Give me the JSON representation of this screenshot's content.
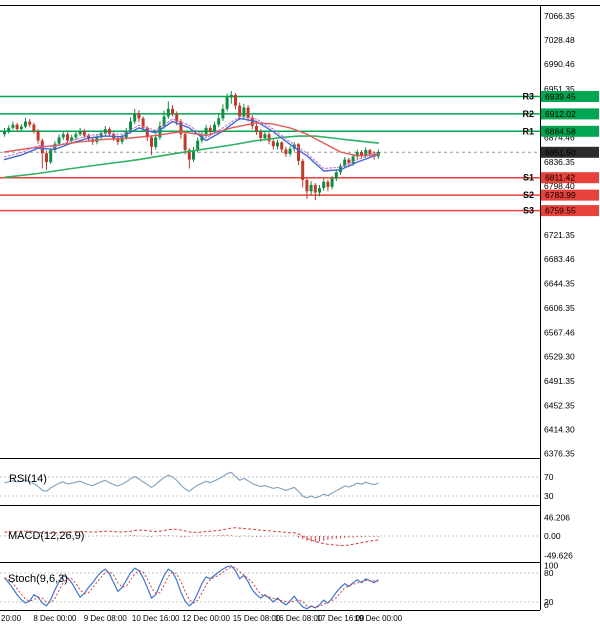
{
  "colors": {
    "resistance": "#00a651",
    "support": "#e8403a",
    "candle_up": "#0f8c44",
    "candle_down": "#c0392b",
    "rsi_line": "#7fa0be",
    "macd_line": "#cf4040",
    "stoch_k": "#3f76cf",
    "stoch_d": "#cf4040",
    "current_badge": "#2b2b2b",
    "current_line": "#999999",
    "frame": "#000000",
    "panel_level_line": "#c9c9c9",
    "axis_text": "#000000"
  },
  "chart_data": {
    "type": "candlestick",
    "ylim": [
      6376.35,
      7066.35
    ],
    "current_price": 6851.5,
    "y_axis_ticks": [
      7066.35,
      7028.48,
      6990.46,
      6951.35,
      6874.46,
      6836.35,
      6798.4,
      6721.35,
      6683.46,
      6644.35,
      6606.35,
      6567.46,
      6529.3,
      6491.35,
      6452.35,
      6414.3,
      6376.35
    ],
    "levels": [
      {
        "name": "R3",
        "value": 6939.45,
        "kind": "resistance"
      },
      {
        "name": "R2",
        "value": 6912.02,
        "kind": "resistance"
      },
      {
        "name": "R1",
        "value": 6884.58,
        "kind": "resistance"
      },
      {
        "name": "S1",
        "value": 6811.42,
        "kind": "support"
      },
      {
        "name": "S2",
        "value": 6783.99,
        "kind": "support"
      },
      {
        "name": "S3",
        "value": 6759.55,
        "kind": "support"
      }
    ],
    "time_ticks": [
      {
        "index": 1,
        "label": "20:00"
      },
      {
        "index": 12,
        "label": "8 Dec 00:00"
      },
      {
        "index": 24,
        "label": "9 Dec 08:00"
      },
      {
        "index": 36,
        "label": "10 Dec 16:00"
      },
      {
        "index": 48,
        "label": "12 Dec 00:00"
      },
      {
        "index": 60,
        "label": "15 Dec 08:00"
      },
      {
        "index": 70,
        "label": "16 Dec 08:00"
      },
      {
        "index": 80,
        "label": "17 Dec 16:00"
      },
      {
        "index": 89,
        "label": "19 Dec 00:00"
      }
    ],
    "candles": [
      [
        6880,
        6890,
        6876,
        6885
      ],
      [
        6885,
        6894,
        6881,
        6890
      ],
      [
        6890,
        6900,
        6887,
        6895
      ],
      [
        6895,
        6898,
        6884,
        6888
      ],
      [
        6888,
        6896,
        6885,
        6892
      ],
      [
        6892,
        6906,
        6889,
        6900
      ],
      [
        6900,
        6904,
        6891,
        6895
      ],
      [
        6895,
        6898,
        6881,
        6885
      ],
      [
        6885,
        6888,
        6865,
        6870
      ],
      [
        6870,
        6873,
        6826,
        6850
      ],
      [
        6850,
        6854,
        6824,
        6836
      ],
      [
        6836,
        6858,
        6833,
        6855
      ],
      [
        6855,
        6869,
        6851,
        6865
      ],
      [
        6865,
        6879,
        6861,
        6875
      ],
      [
        6875,
        6885,
        6871,
        6880
      ],
      [
        6880,
        6883,
        6866,
        6870
      ],
      [
        6870,
        6879,
        6866,
        6875
      ],
      [
        6875,
        6884,
        6871,
        6880
      ],
      [
        6880,
        6890,
        6877,
        6885
      ],
      [
        6885,
        6888,
        6874,
        6878
      ],
      [
        6878,
        6881,
        6868,
        6872
      ],
      [
        6872,
        6875,
        6863,
        6868
      ],
      [
        6868,
        6879,
        6864,
        6875
      ],
      [
        6875,
        6886,
        6871,
        6882
      ],
      [
        6882,
        6893,
        6878,
        6888
      ],
      [
        6888,
        6891,
        6876,
        6880
      ],
      [
        6880,
        6883,
        6869,
        6873
      ],
      [
        6873,
        6876,
        6863,
        6868
      ],
      [
        6868,
        6879,
        6864,
        6875
      ],
      [
        6875,
        6890,
        6871,
        6885
      ],
      [
        6885,
        6907,
        6881,
        6900
      ],
      [
        6900,
        6920,
        6896,
        6913
      ],
      [
        6913,
        6918,
        6899,
        6905
      ],
      [
        6905,
        6908,
        6885,
        6890
      ],
      [
        6890,
        6893,
        6869,
        6875
      ],
      [
        6875,
        6878,
        6847,
        6860
      ],
      [
        6860,
        6880,
        6856,
        6875
      ],
      [
        6875,
        6900,
        6871,
        6893
      ],
      [
        6893,
        6917,
        6889,
        6908
      ],
      [
        6908,
        6932,
        6904,
        6920
      ],
      [
        6920,
        6926,
        6908,
        6912
      ],
      [
        6912,
        6916,
        6894,
        6900
      ],
      [
        6900,
        6904,
        6873,
        6880
      ],
      [
        6880,
        6883,
        6848,
        6855
      ],
      [
        6855,
        6858,
        6826,
        6840
      ],
      [
        6840,
        6860,
        6836,
        6855
      ],
      [
        6855,
        6875,
        6851,
        6870
      ],
      [
        6870,
        6885,
        6866,
        6880
      ],
      [
        6880,
        6895,
        6876,
        6890
      ],
      [
        6890,
        6894,
        6878,
        6885
      ],
      [
        6885,
        6900,
        6881,
        6895
      ],
      [
        6895,
        6911,
        6891,
        6905
      ],
      [
        6905,
        6927,
        6901,
        6920
      ],
      [
        6920,
        6944,
        6916,
        6938
      ],
      [
        6938,
        6948,
        6928,
        6942
      ],
      [
        6942,
        6945,
        6919,
        6925
      ],
      [
        6925,
        6930,
        6902,
        6908
      ],
      [
        6908,
        6928,
        6904,
        6922
      ],
      [
        6922,
        6926,
        6900,
        6906
      ],
      [
        6906,
        6910,
        6888,
        6893
      ],
      [
        6893,
        6897,
        6879,
        6884
      ],
      [
        6884,
        6888,
        6868,
        6874
      ],
      [
        6874,
        6884,
        6870,
        6880
      ],
      [
        6880,
        6883,
        6864,
        6869
      ],
      [
        6869,
        6872,
        6856,
        6861
      ],
      [
        6861,
        6871,
        6856,
        6867
      ],
      [
        6867,
        6869,
        6851,
        6856
      ],
      [
        6856,
        6860,
        6844,
        6849
      ],
      [
        6849,
        6861,
        6845,
        6857
      ],
      [
        6857,
        6868,
        6853,
        6864
      ],
      [
        6864,
        6866,
        6831,
        6838
      ],
      [
        6838,
        6841,
        6796,
        6808
      ],
      [
        6808,
        6811,
        6778,
        6790
      ],
      [
        6790,
        6806,
        6784,
        6800
      ],
      [
        6800,
        6803,
        6776,
        6788
      ],
      [
        6788,
        6800,
        6782,
        6795
      ],
      [
        6795,
        6810,
        6791,
        6805
      ],
      [
        6805,
        6808,
        6790,
        6797
      ],
      [
        6797,
        6814,
        6793,
        6810
      ],
      [
        6810,
        6824,
        6806,
        6820
      ],
      [
        6820,
        6834,
        6816,
        6830
      ],
      [
        6830,
        6844,
        6826,
        6840
      ],
      [
        6840,
        6843,
        6828,
        6834
      ],
      [
        6834,
        6849,
        6830,
        6845
      ],
      [
        6845,
        6856,
        6841,
        6852
      ],
      [
        6852,
        6855,
        6842,
        6847
      ],
      [
        6847,
        6859,
        6843,
        6855
      ],
      [
        6855,
        6857,
        6844,
        6849
      ],
      [
        6849,
        6853,
        6840,
        6845
      ],
      [
        6845,
        6856,
        6841,
        6852
      ]
    ],
    "moving_averages": [
      {
        "name": "ma-green",
        "color": "#2eb263",
        "width": 1.6,
        "points": [
          [
            0,
            6812
          ],
          [
            8,
            6818
          ],
          [
            16,
            6826
          ],
          [
            24,
            6833
          ],
          [
            32,
            6840
          ],
          [
            40,
            6849
          ],
          [
            48,
            6857
          ],
          [
            54,
            6863
          ],
          [
            60,
            6870
          ],
          [
            66,
            6875
          ],
          [
            70,
            6877
          ],
          [
            74,
            6877
          ],
          [
            78,
            6874
          ],
          [
            82,
            6871
          ],
          [
            86,
            6868
          ],
          [
            89,
            6866
          ]
        ]
      },
      {
        "name": "ma-blue",
        "color": "#4169d1",
        "width": 1.4,
        "points": [
          [
            0,
            6840
          ],
          [
            4,
            6847
          ],
          [
            8,
            6858
          ],
          [
            12,
            6856
          ],
          [
            16,
            6866
          ],
          [
            20,
            6874
          ],
          [
            24,
            6877
          ],
          [
            28,
            6876
          ],
          [
            32,
            6890
          ],
          [
            36,
            6882
          ],
          [
            40,
            6900
          ],
          [
            44,
            6890
          ],
          [
            48,
            6870
          ],
          [
            52,
            6885
          ],
          [
            56,
            6905
          ],
          [
            60,
            6900
          ],
          [
            64,
            6884
          ],
          [
            68,
            6864
          ],
          [
            72,
            6846
          ],
          [
            76,
            6822
          ],
          [
            80,
            6824
          ],
          [
            84,
            6836
          ],
          [
            89,
            6848
          ]
        ]
      },
      {
        "name": "ma-red",
        "color": "#e05a5a",
        "width": 1.4,
        "points": [
          [
            0,
            6852
          ],
          [
            6,
            6858
          ],
          [
            12,
            6862
          ],
          [
            18,
            6868
          ],
          [
            24,
            6872
          ],
          [
            30,
            6874
          ],
          [
            36,
            6878
          ],
          [
            42,
            6884
          ],
          [
            48,
            6878
          ],
          [
            54,
            6890
          ],
          [
            60,
            6898
          ],
          [
            64,
            6896
          ],
          [
            68,
            6890
          ],
          [
            72,
            6880
          ],
          [
            76,
            6866
          ],
          [
            80,
            6852
          ],
          [
            84,
            6846
          ],
          [
            89,
            6848
          ]
        ]
      },
      {
        "name": "ma-magenta",
        "color": "#c86ec8",
        "width": 1,
        "dash": "2,2",
        "points": [
          [
            0,
            6844
          ],
          [
            4,
            6851
          ],
          [
            8,
            6862
          ],
          [
            12,
            6860
          ],
          [
            16,
            6870
          ],
          [
            20,
            6878
          ],
          [
            24,
            6881
          ],
          [
            28,
            6880
          ],
          [
            32,
            6894
          ],
          [
            36,
            6886
          ],
          [
            40,
            6904
          ],
          [
            44,
            6894
          ],
          [
            48,
            6874
          ],
          [
            52,
            6890
          ],
          [
            56,
            6908
          ],
          [
            60,
            6904
          ],
          [
            64,
            6888
          ],
          [
            68,
            6868
          ],
          [
            72,
            6850
          ],
          [
            76,
            6826
          ],
          [
            80,
            6828
          ],
          [
            84,
            6840
          ],
          [
            89,
            6852
          ]
        ]
      }
    ],
    "indicators": {
      "rsi": {
        "label": "RSI(14)",
        "levels": [
          70,
          30
        ],
        "axis": [
          {
            "v": 70,
            "label": "70"
          },
          {
            "v": 30,
            "label": "30"
          }
        ],
        "values": [
          58,
          60,
          62,
          60,
          61,
          64,
          61,
          56,
          50,
          42,
          40,
          47,
          52,
          57,
          60,
          55,
          57,
          59,
          61,
          57,
          54,
          52,
          56,
          60,
          63,
          58,
          54,
          51,
          55,
          60,
          66,
          71,
          66,
          60,
          54,
          48,
          54,
          62,
          69,
          74,
          70,
          63,
          53,
          45,
          40,
          47,
          53,
          57,
          61,
          58,
          62,
          66,
          71,
          77,
          80,
          71,
          63,
          67,
          62,
          56,
          53,
          50,
          52,
          49,
          46,
          48,
          45,
          42,
          45,
          48,
          40,
          30,
          26,
          30,
          26,
          29,
          34,
          31,
          36,
          41,
          46,
          51,
          49,
          53,
          57,
          55,
          59,
          56,
          54,
          57
        ]
      },
      "macd": {
        "label": "MACD(12,26,9)",
        "axis": [
          {
            "v": 46.206,
            "label": "46.206"
          },
          {
            "v": 0,
            "label": "0.00"
          },
          {
            "v": -49.626,
            "label": "-49.626"
          }
        ],
        "signal": [
          10,
          10,
          11,
          11,
          12,
          12,
          12,
          11,
          10,
          8,
          7,
          7,
          8,
          9,
          10,
          10,
          10,
          11,
          11,
          11,
          10,
          10,
          10,
          11,
          12,
          12,
          11,
          10,
          10,
          11,
          12,
          14,
          15,
          15,
          14,
          12,
          11,
          12,
          14,
          16,
          17,
          17,
          15,
          13,
          10,
          9,
          9,
          10,
          11,
          12,
          13,
          14,
          16,
          18,
          20,
          21,
          20,
          19,
          18,
          17,
          16,
          15,
          14,
          13,
          12,
          11,
          10,
          9,
          8,
          8,
          5,
          0,
          -6,
          -10,
          -14,
          -17,
          -19,
          -21,
          -22,
          -23,
          -24,
          -24,
          -23,
          -21,
          -19,
          -17,
          -15,
          -13,
          -11,
          -10
        ],
        "histogram": [
          1,
          1,
          0,
          -1,
          0,
          1,
          1,
          0,
          -1,
          -2,
          -1,
          0,
          1,
          1,
          1,
          0,
          0,
          1,
          1,
          0,
          -1,
          0,
          1,
          1,
          1,
          0,
          -1,
          -1,
          0,
          1,
          2,
          2,
          1,
          -1,
          -2,
          -2,
          0,
          2,
          2,
          2,
          1,
          -1,
          -3,
          -3,
          -2,
          0,
          1,
          2,
          2,
          1,
          1,
          2,
          3,
          3,
          2,
          -1,
          -2,
          1,
          -1,
          -2,
          -2,
          -2,
          -1,
          -1,
          -1,
          0,
          -1,
          -1,
          0,
          1,
          -4,
          -8,
          -12,
          -14,
          -15,
          -14,
          -12,
          -10,
          -8,
          -7,
          -6,
          -5,
          -4,
          -4,
          -3,
          -3,
          -2,
          -2,
          -2,
          -2
        ]
      },
      "stoch": {
        "label": "Stoch(9,6,3)",
        "levels": [
          80,
          20
        ],
        "axis": [
          {
            "v": 100,
            "label": "100"
          },
          {
            "v": 80,
            "label": "80"
          },
          {
            "v": 20,
            "label": "20"
          },
          {
            "v": 0,
            "label": "0"
          }
        ],
        "k": [
          70,
          60,
          48,
          35,
          25,
          18,
          22,
          35,
          30,
          18,
          12,
          25,
          45,
          62,
          75,
          70,
          60,
          45,
          30,
          38,
          50,
          60,
          72,
          82,
          88,
          78,
          60,
          42,
          50,
          65,
          80,
          90,
          85,
          70,
          50,
          28,
          35,
          55,
          75,
          88,
          82,
          65,
          40,
          22,
          12,
          20,
          38,
          58,
          72,
          68,
          75,
          82,
          88,
          93,
          95,
          85,
          68,
          75,
          62,
          45,
          35,
          28,
          35,
          28,
          20,
          28,
          20,
          14,
          22,
          32,
          20,
          10,
          6,
          12,
          8,
          14,
          24,
          18,
          28,
          40,
          50,
          58,
          52,
          60,
          66,
          60,
          68,
          64,
          60,
          66
        ]
      }
    }
  }
}
